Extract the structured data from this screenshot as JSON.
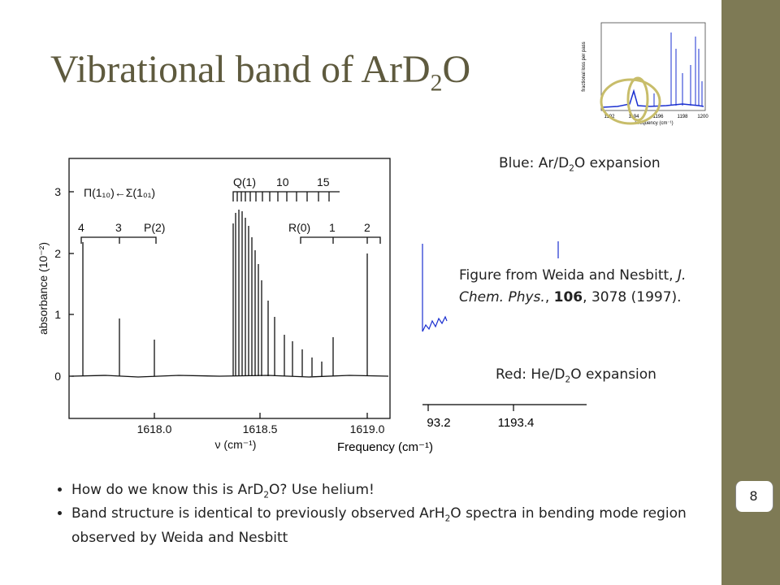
{
  "title": [
    "Vibrational band of ArD",
    "2",
    "O"
  ],
  "main_figure": {
    "y_label": "absorbance (10⁻²)",
    "y_ticks": [
      "0",
      "1",
      "2",
      "3"
    ],
    "x_ticks": [
      "1618.0",
      "1618.5",
      "1619.0"
    ],
    "x_label": "ν (cm⁻¹)",
    "annotations": [
      "Π(1₁₀)←Σ(1₀₁)",
      "Q(1)",
      "10",
      "15",
      "4",
      "3",
      "P(2)",
      "R(0)",
      "1",
      "2"
    ]
  },
  "second_figure": {
    "x_ticks": [
      "93.2",
      "1193.4"
    ],
    "x_label": "Frequency (cm⁻¹)"
  },
  "thumbnail": {
    "y_label": "fractional loss per pass",
    "x_ticks": [
      "1192",
      "1194",
      "1196",
      "1198",
      "1200"
    ],
    "x_label": "Frequency (cm⁻¹)"
  },
  "labels": {
    "blue": [
      "Blue: Ar/D",
      "2",
      "O expansion"
    ],
    "citation": [
      "Figure from Weida and Nesbitt, ",
      "J. Chem. Phys.",
      ", ",
      "106",
      ", 3078 (1997)."
    ],
    "red": [
      "Red: He/D",
      "2",
      "O expansion"
    ]
  },
  "bullets": [
    [
      "How do we know this is ArD",
      "2",
      "O?  Use helium!"
    ],
    [
      "Band structure is identical to previously observed ArH",
      "2",
      "O spectra in bending mode region observed by Weida and Nesbitt"
    ]
  ],
  "page_number": "8"
}
